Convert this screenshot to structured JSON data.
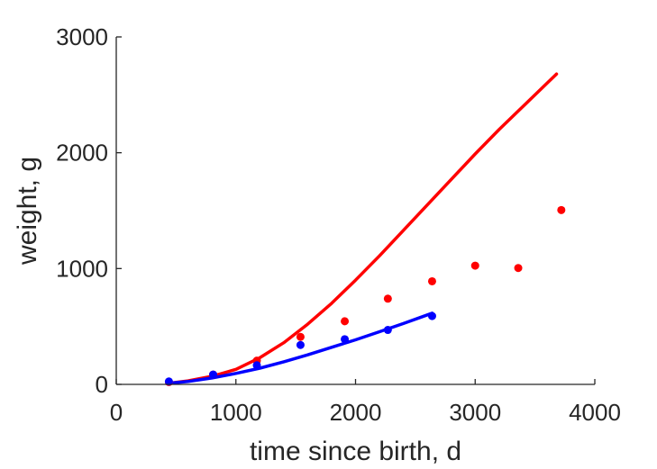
{
  "chart_data": {
    "type": "scatter",
    "xlabel": "time since birth, d",
    "ylabel": "weight, g",
    "xlim": [
      0,
      4000
    ],
    "ylim": [
      0,
      3000
    ],
    "xticks": [
      "0",
      "1000",
      "2000",
      "3000",
      "4000"
    ],
    "yticks": [
      "0",
      "1000",
      "2000",
      "3000"
    ],
    "grid": false,
    "legend": "none",
    "series": [
      {
        "kind": "points",
        "color": "#ff0000",
        "x": [
          440,
          810,
          1175,
          1540,
          1910,
          2270,
          2640,
          3000,
          3360,
          3720
        ],
        "y": [
          20,
          85,
          205,
          410,
          545,
          740,
          890,
          1025,
          1005,
          1505
        ]
      },
      {
        "kind": "points",
        "color": "#0000ff",
        "x": [
          440,
          810,
          1175,
          1540,
          1910,
          2270,
          2640
        ],
        "y": [
          25,
          85,
          165,
          340,
          390,
          470,
          590
        ]
      },
      {
        "kind": "line",
        "color": "#ff0000",
        "x": [
          440,
          600,
          800,
          1000,
          1200,
          1400,
          1600,
          1800,
          2000,
          2200,
          2400,
          2600,
          2800,
          3000,
          3200,
          3400,
          3600,
          3680
        ],
        "y": [
          10,
          30,
          70,
          130,
          230,
          360,
          520,
          700,
          900,
          1110,
          1330,
          1550,
          1770,
          1990,
          2200,
          2400,
          2600,
          2680
        ]
      },
      {
        "kind": "line",
        "color": "#0000ff",
        "x": [
          440,
          600,
          800,
          1000,
          1200,
          1400,
          1600,
          1800,
          2000,
          2200,
          2400,
          2600,
          2640
        ],
        "y": [
          10,
          25,
          55,
          95,
          140,
          195,
          255,
          320,
          385,
          455,
          525,
          600,
          615
        ]
      }
    ]
  }
}
